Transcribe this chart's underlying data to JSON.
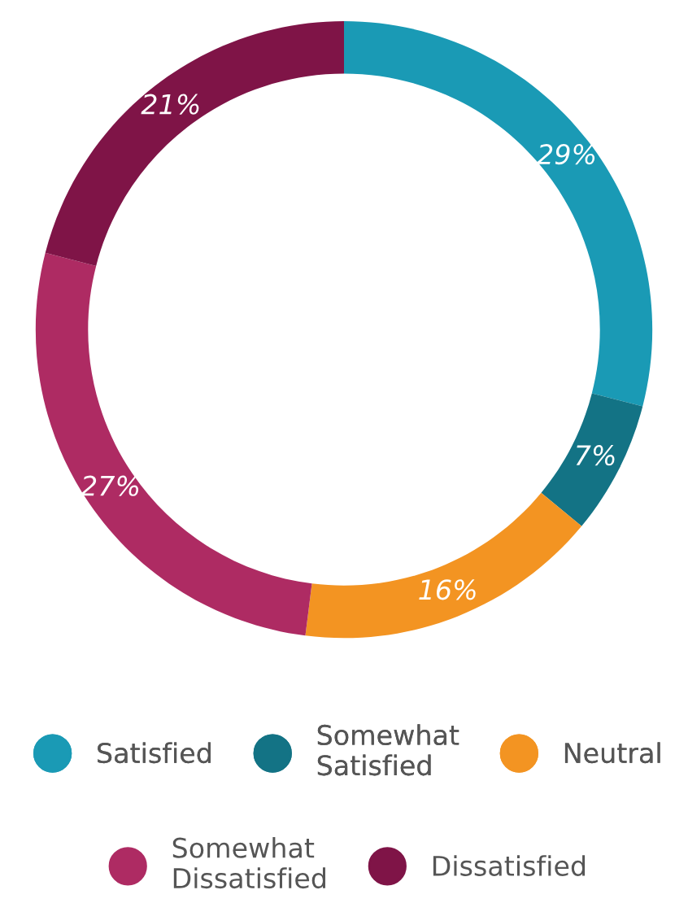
{
  "chart_data": {
    "type": "donut",
    "categories": [
      "Satisfied",
      "Somewhat Satisfied",
      "Neutral",
      "Somewhat Dissatisfied",
      "Dissatisfied"
    ],
    "values": [
      29,
      7,
      16,
      27,
      21
    ],
    "colors": [
      "#1a9ab5",
      "#137385",
      "#f39422",
      "#ae2b63",
      "#7f1447"
    ],
    "value_labels": [
      "29%",
      "7%",
      "16%",
      "27%",
      "21%"
    ],
    "legend": "bottom"
  }
}
